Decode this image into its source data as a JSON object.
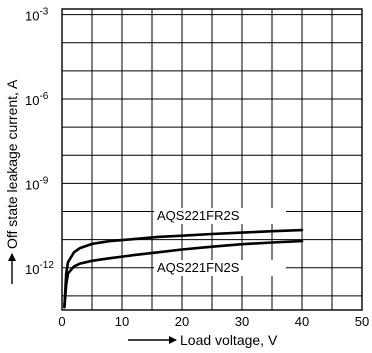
{
  "chart_data": {
    "type": "line",
    "xlabel": "Load voltage, V",
    "ylabel": "Off state leakage current, A",
    "xlim": [
      0,
      50
    ],
    "x_ticks": [
      0,
      10,
      20,
      30,
      40,
      50
    ],
    "ylim_exp": [
      -13.5,
      -2.8
    ],
    "y_scale": "log",
    "y_tick_labels": [
      {
        "base": "10",
        "exp": "-3",
        "value_exp": -3
      },
      {
        "base": "10",
        "exp": "-6",
        "value_exp": -6
      },
      {
        "base": "10",
        "exp": "-9",
        "value_exp": -9
      },
      {
        "base": "10",
        "exp": "-12",
        "value_exp": -12
      }
    ],
    "grid": true,
    "series": [
      {
        "name": "AQS221FR2S",
        "x": [
          0.4,
          0.7,
          1.0,
          2,
          3,
          5,
          8,
          12,
          16,
          20,
          25,
          30,
          35,
          40
        ],
        "y_exp": [
          -13.4,
          -12.2,
          -11.8,
          -11.45,
          -11.3,
          -11.15,
          -11.05,
          -10.98,
          -10.9,
          -10.86,
          -10.8,
          -10.75,
          -10.7,
          -10.66
        ]
      },
      {
        "name": "AQS221FN2S",
        "x": [
          0.4,
          0.7,
          1.0,
          2,
          3,
          5,
          8,
          12,
          16,
          20,
          25,
          30,
          35,
          40
        ],
        "y_exp": [
          -13.4,
          -12.6,
          -12.2,
          -11.95,
          -11.85,
          -11.75,
          -11.66,
          -11.55,
          -11.45,
          -11.35,
          -11.25,
          -11.16,
          -11.1,
          -11.05
        ]
      }
    ]
  }
}
